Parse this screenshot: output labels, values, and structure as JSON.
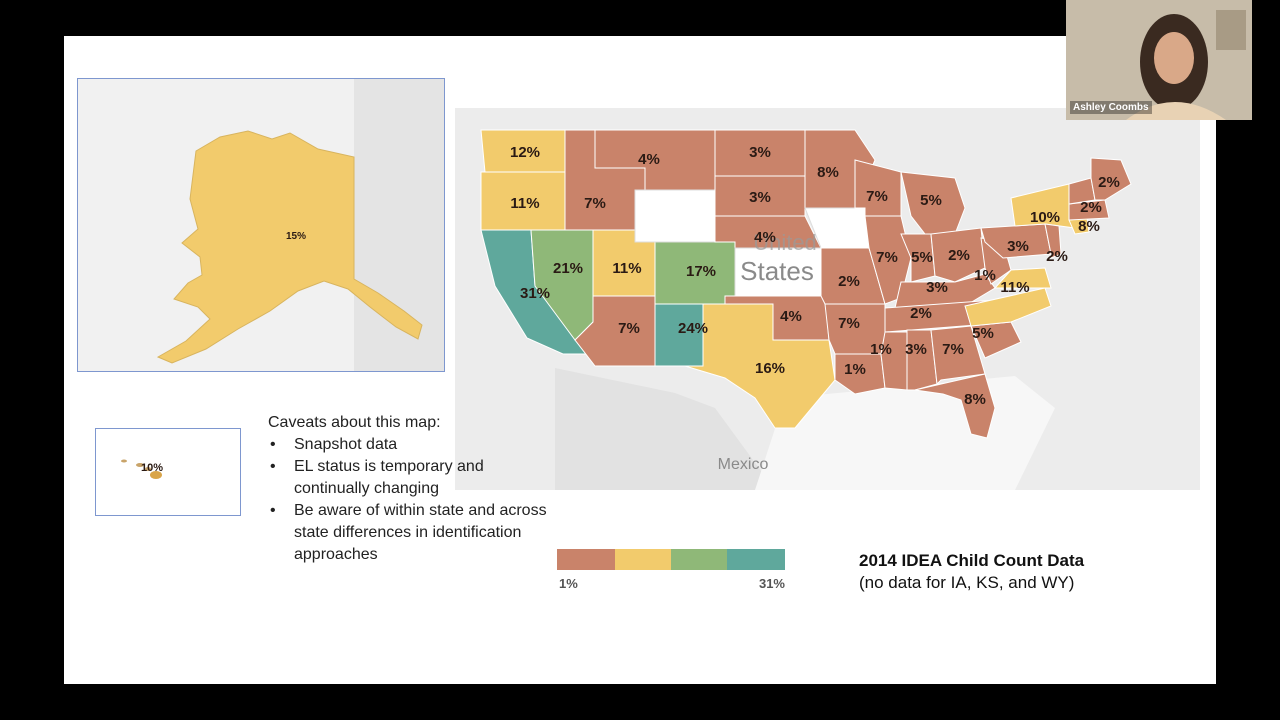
{
  "colors": {
    "band1": "#c9836a",
    "band2": "#f2cb6c",
    "band3": "#8fb878",
    "band4": "#5fa89c",
    "nodata": "#ffffff",
    "land": "#e8e8e8",
    "water": "#ffffff"
  },
  "map": {
    "country_label_1": "United",
    "country_label_2": "States",
    "mexico_label": "Mexico",
    "states": {
      "WA": "12%",
      "OR": "11%",
      "CA": "31%",
      "NV": "21%",
      "UT": "11%",
      "CO": "17%",
      "AZ": "7%",
      "NM": "24%",
      "TX": "16%",
      "MT": "4%",
      "ND": "3%",
      "SD": "3%",
      "NE": "4%",
      "MN": "8%",
      "WI": "7%",
      "MI": "5%",
      "ID": "7%",
      "OK": "4%",
      "MO": "2%",
      "AR": "7%",
      "LA": "1%",
      "MS": "1%",
      "AL": "3%",
      "GA": "7%",
      "FL": "8%",
      "SC": "5%",
      "NC": "11%",
      "TN": "2%",
      "KY": "3%",
      "IL": "7%",
      "IN": "5%",
      "OH": "2%",
      "WV": "1%",
      "PA": "3%",
      "NY": "10%",
      "NJ": "2%",
      "CT": "8%",
      "MA": "2%",
      "ME": "2%",
      "AK": "15%",
      "HI": "10%"
    }
  },
  "caveats": {
    "heading": "Caveats about this map:",
    "items": [
      "Snapshot data",
      "EL status is temporary and continually changing",
      "Be aware of within state and across state differences in identification approaches"
    ]
  },
  "legend": {
    "min_label": "1%",
    "max_label": "31%"
  },
  "title": {
    "line1": "2014 IDEA Child Count Data",
    "line2": "(no data for IA, KS, and WY)"
  },
  "webcam": {
    "name": "Ashley Coombs"
  }
}
